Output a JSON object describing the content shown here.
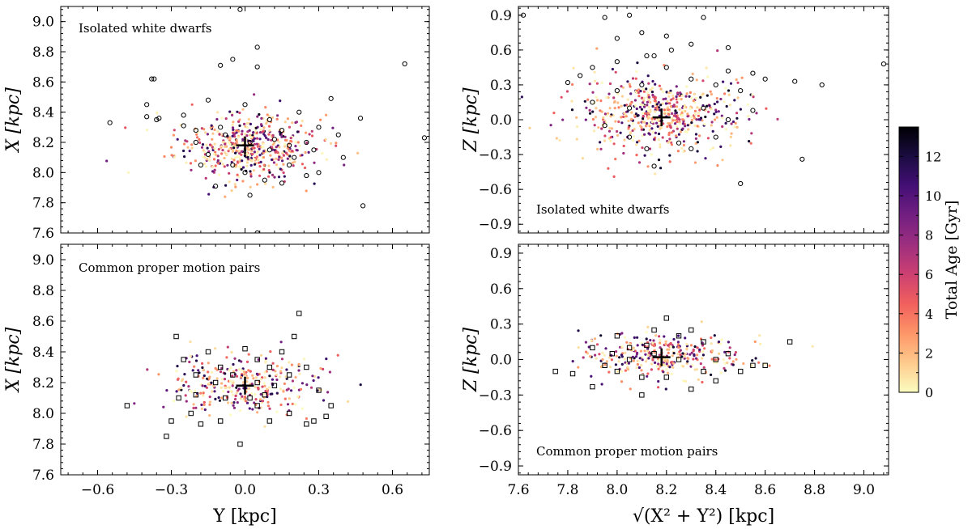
{
  "figure": {
    "colorbar": {
      "label": "Total Age [Gyr]",
      "ticks": [
        0,
        2,
        4,
        6,
        8,
        10,
        12
      ],
      "range": [
        0,
        13.5
      ],
      "colormap": [
        "#fcfdbf",
        "#feca8d",
        "#fd9668",
        "#f1605d",
        "#cd4071",
        "#9e2f7f",
        "#721f81",
        "#440f76",
        "#1b0c41",
        "#000004"
      ]
    },
    "marker_colors": {
      "open_marker": "#000000",
      "center_cross": "#000000"
    }
  },
  "chart_data": [
    {
      "id": "top-left",
      "type": "scatter",
      "annotation": "Isolated white dwarfs",
      "xlabel": "",
      "ylabel": "X [kpc]",
      "xlim": [
        -0.75,
        0.75
      ],
      "ylim": [
        7.6,
        9.1
      ],
      "xticks": [
        -0.6,
        -0.3,
        0.0,
        0.3,
        0.6
      ],
      "xtick_labels": [
        "",
        "",
        "",
        "",
        ""
      ],
      "yticks": [
        7.6,
        7.8,
        8.0,
        8.2,
        8.4,
        8.6,
        8.8,
        9.0
      ],
      "ytick_labels": [
        "7.6",
        "7.8",
        "8.0",
        "8.2",
        "8.4",
        "8.6",
        "8.8",
        "9.0"
      ],
      "center": [
        0.0,
        8.18
      ],
      "marker": "circle",
      "dot_cloud": {
        "center": [
          0.0,
          8.17
        ],
        "spread": [
          0.14,
          0.11
        ],
        "count": 520
      },
      "open_markers": [
        [
          -0.55,
          8.33
        ],
        [
          -0.38,
          8.62
        ],
        [
          -0.37,
          8.62
        ],
        [
          -0.4,
          8.45
        ],
        [
          -0.4,
          8.37
        ],
        [
          -0.36,
          8.35
        ],
        [
          -0.35,
          8.36
        ],
        [
          -0.25,
          8.38
        ],
        [
          -0.25,
          8.31
        ],
        [
          -0.2,
          8.28
        ],
        [
          -0.15,
          8.48
        ],
        [
          -0.1,
          8.71
        ],
        [
          -0.05,
          8.75
        ],
        [
          -0.02,
          9.08
        ],
        [
          0.0,
          8.45
        ],
        [
          0.05,
          8.83
        ],
        [
          0.05,
          8.7
        ],
        [
          0.1,
          8.35
        ],
        [
          0.1,
          8.15
        ],
        [
          0.15,
          8.28
        ],
        [
          0.18,
          8.05
        ],
        [
          0.22,
          8.4
        ],
        [
          0.25,
          8.2
        ],
        [
          0.28,
          8.15
        ],
        [
          0.3,
          8.0
        ],
        [
          0.35,
          8.49
        ],
        [
          0.38,
          8.25
        ],
        [
          0.4,
          8.1
        ],
        [
          0.47,
          8.36
        ],
        [
          0.48,
          7.78
        ],
        [
          0.65,
          8.72
        ],
        [
          0.73,
          8.23
        ],
        [
          -0.12,
          7.91
        ],
        [
          -0.2,
          8.2
        ],
        [
          -0.15,
          8.12
        ],
        [
          -0.05,
          8.05
        ],
        [
          0.02,
          8.2
        ],
        [
          0.08,
          7.95
        ],
        [
          0.15,
          7.93
        ],
        [
          0.2,
          8.1
        ],
        [
          0.25,
          7.98
        ],
        [
          0.3,
          8.3
        ],
        [
          0.02,
          7.85
        ],
        [
          0.05,
          7.6
        ],
        [
          -0.08,
          8.25
        ],
        [
          0.0,
          8.0
        ],
        [
          0.12,
          8.22
        ],
        [
          -0.18,
          8.05
        ],
        [
          0.18,
          8.18
        ],
        [
          -0.1,
          8.3
        ]
      ]
    },
    {
      "id": "top-right",
      "type": "scatter",
      "annotation": "Isolated white dwarfs",
      "xlabel": "",
      "ylabel": "Z [kpc]",
      "xlim": [
        7.6,
        9.1
      ],
      "ylim": [
        -0.975,
        0.975
      ],
      "xticks": [
        7.6,
        7.8,
        8.0,
        8.2,
        8.4,
        8.6,
        8.8,
        9.0
      ],
      "xtick_labels": [
        "",
        "",
        "",
        "",
        "",
        "",
        "",
        ""
      ],
      "yticks": [
        -0.9,
        -0.6,
        -0.3,
        0.0,
        0.3,
        0.6,
        0.9
      ],
      "ytick_labels": [
        "−0.9",
        "−0.6",
        "−0.3",
        "0.0",
        "0.3",
        "0.6",
        "0.9"
      ],
      "center": [
        8.18,
        0.02
      ],
      "marker": "circle",
      "dot_cloud": {
        "center": [
          8.18,
          0.05
        ],
        "spread": [
          0.17,
          0.16
        ],
        "count": 560
      },
      "open_markers": [
        [
          7.62,
          0.9
        ],
        [
          7.8,
          0.32
        ],
        [
          7.9,
          0.45
        ],
        [
          7.95,
          0.88
        ],
        [
          8.0,
          0.7
        ],
        [
          8.05,
          0.9
        ],
        [
          8.1,
          0.75
        ],
        [
          8.12,
          0.55
        ],
        [
          8.15,
          0.55
        ],
        [
          8.2,
          0.72
        ],
        [
          8.22,
          0.6
        ],
        [
          8.3,
          0.65
        ],
        [
          8.35,
          0.88
        ],
        [
          8.4,
          0.3
        ],
        [
          8.45,
          0.62
        ],
        [
          8.5,
          0.25
        ],
        [
          8.55,
          0.4
        ],
        [
          8.6,
          0.35
        ],
        [
          8.72,
          0.33
        ],
        [
          8.83,
          0.3
        ],
        [
          9.08,
          0.48
        ],
        [
          8.55,
          0.08
        ],
        [
          8.75,
          -0.34
        ],
        [
          8.5,
          -0.55
        ],
        [
          8.25,
          -0.2
        ],
        [
          8.15,
          -0.4
        ],
        [
          8.05,
          -0.15
        ],
        [
          7.95,
          -0.05
        ],
        [
          8.3,
          -0.25
        ],
        [
          8.1,
          0.3
        ],
        [
          8.0,
          0.25
        ],
        [
          8.3,
          0.35
        ],
        [
          8.2,
          0.45
        ],
        [
          7.9,
          0.15
        ],
        [
          8.45,
          0.0
        ],
        [
          8.4,
          -0.15
        ],
        [
          8.12,
          -0.25
        ],
        [
          8.05,
          0.1
        ],
        [
          8.35,
          0.1
        ],
        [
          8.45,
          0.42
        ],
        [
          7.85,
          0.38
        ],
        [
          8.0,
          0.5
        ]
      ]
    },
    {
      "id": "bottom-left",
      "type": "scatter",
      "annotation": "Common proper motion pairs",
      "xlabel": "Y [kpc]",
      "ylabel": "X [kpc]",
      "xlim": [
        -0.75,
        0.75
      ],
      "ylim": [
        7.6,
        9.1
      ],
      "xticks": [
        -0.6,
        -0.3,
        0.0,
        0.3,
        0.6
      ],
      "xtick_labels": [
        "−0.6",
        "−0.3",
        "0.0",
        "0.3",
        "0.6"
      ],
      "yticks": [
        7.6,
        7.8,
        8.0,
        8.2,
        8.4,
        8.6,
        8.8,
        9.0
      ],
      "ytick_labels": [
        "7.6",
        "7.8",
        "8.0",
        "8.2",
        "8.4",
        "8.6",
        "8.8",
        "9.0"
      ],
      "center": [
        0.0,
        8.18
      ],
      "marker": "square",
      "dot_cloud": {
        "center": [
          0.0,
          8.18
        ],
        "spread": [
          0.15,
          0.1
        ],
        "count": 330
      },
      "open_markers": [
        [
          -0.48,
          8.05
        ],
        [
          -0.32,
          7.85
        ],
        [
          -0.28,
          8.5
        ],
        [
          -0.25,
          8.35
        ],
        [
          -0.2,
          8.12
        ],
        [
          -0.15,
          8.4
        ],
        [
          -0.1,
          8.3
        ],
        [
          -0.05,
          8.25
        ],
        [
          0.0,
          8.42
        ],
        [
          0.05,
          8.35
        ],
        [
          0.1,
          8.3
        ],
        [
          0.15,
          8.4
        ],
        [
          0.2,
          8.5
        ],
        [
          0.22,
          8.65
        ],
        [
          0.25,
          8.3
        ],
        [
          0.3,
          8.15
        ],
        [
          0.35,
          8.05
        ],
        [
          0.33,
          7.98
        ],
        [
          0.28,
          7.95
        ],
        [
          0.25,
          7.93
        ],
        [
          0.18,
          8.0
        ],
        [
          0.1,
          7.95
        ],
        [
          0.05,
          8.05
        ],
        [
          -0.02,
          7.8
        ],
        [
          -0.1,
          7.95
        ],
        [
          -0.18,
          7.93
        ],
        [
          -0.22,
          8.0
        ],
        [
          -0.3,
          7.95
        ],
        [
          -0.27,
          8.1
        ],
        [
          0.12,
          8.18
        ],
        [
          0.08,
          8.12
        ],
        [
          -0.08,
          8.1
        ],
        [
          -0.12,
          8.2
        ],
        [
          0.18,
          8.25
        ],
        [
          -0.2,
          8.25
        ],
        [
          0.05,
          8.2
        ],
        [
          0.02,
          8.1
        ]
      ]
    },
    {
      "id": "bottom-right",
      "type": "scatter",
      "annotation": "Common proper motion pairs",
      "xlabel": "√(X² + Y²) [kpc]",
      "ylabel": "Z [kpc]",
      "xlim": [
        7.6,
        9.1
      ],
      "ylim": [
        -0.975,
        0.975
      ],
      "xticks": [
        7.6,
        7.8,
        8.0,
        8.2,
        8.4,
        8.6,
        8.8,
        9.0
      ],
      "xtick_labels": [
        "7.6",
        "7.8",
        "8.0",
        "8.2",
        "8.4",
        "8.6",
        "8.8",
        "9.0"
      ],
      "yticks": [
        -0.9,
        -0.6,
        -0.3,
        0.0,
        0.3,
        0.6,
        0.9
      ],
      "ytick_labels": [
        "−0.9",
        "−0.6",
        "−0.3",
        "0.0",
        "0.3",
        "0.6",
        "0.9"
      ],
      "center": [
        8.18,
        0.02
      ],
      "marker": "square",
      "dot_cloud": {
        "center": [
          8.18,
          0.03
        ],
        "spread": [
          0.16,
          0.1
        ],
        "count": 320
      },
      "open_markers": [
        [
          7.75,
          -0.1
        ],
        [
          7.82,
          -0.12
        ],
        [
          7.9,
          0.1
        ],
        [
          7.9,
          -0.23
        ],
        [
          7.95,
          -0.05
        ],
        [
          8.0,
          0.2
        ],
        [
          8.05,
          0.1
        ],
        [
          8.1,
          -0.3
        ],
        [
          8.15,
          0.25
        ],
        [
          8.2,
          0.35
        ],
        [
          8.25,
          0.2
        ],
        [
          8.3,
          0.25
        ],
        [
          8.35,
          0.15
        ],
        [
          8.4,
          0.0
        ],
        [
          8.45,
          0.05
        ],
        [
          8.5,
          -0.1
        ],
        [
          8.55,
          -0.05
        ],
        [
          8.6,
          -0.05
        ],
        [
          8.7,
          0.15
        ],
        [
          8.4,
          -0.18
        ],
        [
          8.3,
          -0.25
        ],
        [
          8.2,
          -0.15
        ],
        [
          8.1,
          -0.15
        ],
        [
          8.0,
          -0.1
        ],
        [
          8.05,
          0.0
        ],
        [
          8.15,
          0.05
        ],
        [
          8.25,
          0.0
        ],
        [
          8.35,
          -0.1
        ],
        [
          7.98,
          0.05
        ],
        [
          8.12,
          0.12
        ]
      ]
    }
  ]
}
